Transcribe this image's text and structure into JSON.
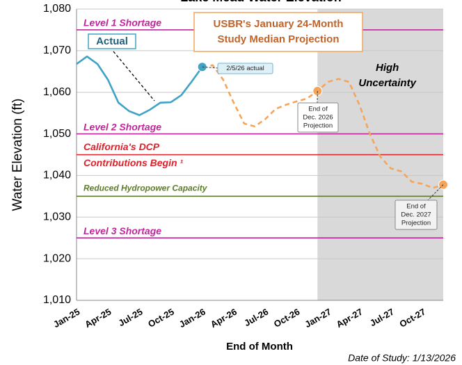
{
  "chart_data": {
    "type": "line",
    "title": "Lake Mead Water Elevation",
    "x_label": "End of Month",
    "y_label": "Water Elevation (ft)",
    "footnote": "Date of Study: 1/13/2026",
    "categories": [
      "Jan-25",
      null,
      null,
      "Apr-25",
      null,
      null,
      "Jul-25",
      null,
      null,
      "Oct-25",
      null,
      null,
      "Jan-26",
      null,
      null,
      "Apr-26",
      null,
      null,
      "Jul-26",
      null,
      null,
      "Oct-26",
      null,
      null,
      "Jan-27",
      null,
      null,
      "Apr-27",
      null,
      null,
      "Jul-27",
      null,
      null,
      "Oct-27",
      null,
      null
    ],
    "series": [
      {
        "name": "Actual",
        "color": "#3ea3c4",
        "dashed": false,
        "values": [
          1066.8,
          1068.6,
          1066.8,
          1063,
          1057.5,
          1055.5,
          1054.5,
          1055.8,
          1057.5,
          1057.6,
          1059.3,
          1062.6,
          1066.1,
          null,
          null,
          null,
          null,
          null,
          null,
          null,
          null,
          null,
          null,
          null,
          null,
          null,
          null,
          null,
          null,
          null,
          null,
          null,
          null,
          null,
          null,
          null
        ]
      },
      {
        "color": "#f6a45a",
        "dashed": true,
        "values": [
          null,
          null,
          null,
          null,
          null,
          null,
          null,
          null,
          null,
          null,
          null,
          null,
          1066.1,
          1066.5,
          1063,
          1057.5,
          1052.5,
          1051.8,
          1053.5,
          1056,
          1057,
          1057.8,
          1058.5,
          1060.3,
          1062.5,
          1063.2,
          1062.5,
          1057,
          1050,
          1044.5,
          1041.7,
          1041,
          1038.5,
          1038,
          1037,
          1037.8
        ]
      }
    ],
    "ylim": [
      1010,
      1080
    ],
    "yticks": [
      {
        "value": 1010,
        "label": "1,010"
      },
      {
        "value": 1020,
        "label": "1,020"
      },
      {
        "value": 1030,
        "label": "1,030"
      },
      {
        "value": 1040,
        "label": "1,040"
      },
      {
        "value": 1050,
        "label": "1,050"
      },
      {
        "value": 1060,
        "label": "1,060"
      },
      {
        "value": 1070,
        "label": "1,070"
      },
      {
        "value": 1080,
        "label": "1,080"
      }
    ],
    "grid": true,
    "reference_lines": [
      {
        "value": 1075,
        "color": "#c0269a",
        "label_lines": [
          "Level 1 Shortage"
        ]
      },
      {
        "value": 1050,
        "color": "#c0269a",
        "label_lines": [
          "Level 2 Shortage"
        ]
      },
      {
        "value": 1045,
        "color": "#e0202a",
        "label_lines": [
          "California's DCP",
          "Contributions Begin ¹"
        ]
      },
      {
        "value": 1035,
        "color": "#5f7a2a",
        "label_lines": [
          "Reduced Hydropower Capacity"
        ]
      },
      {
        "value": 1025,
        "color": "#c0269a",
        "label_lines": [
          "Level 3 Shortage"
        ]
      }
    ],
    "shaded_region": {
      "label_lines": [
        "High",
        "Uncertainty"
      ],
      "color": "#d9d9d9"
    },
    "projection_label": [
      "USBR's January 24-Month",
      "Study Median Projection"
    ],
    "callouts": [
      {
        "lines": [
          "2/5/26 actual"
        ]
      },
      {
        "lines": [
          "End of",
          "Dec. 2026",
          "Projection"
        ]
      },
      {
        "lines": [
          "End of",
          "Dec. 2027",
          "Projection"
        ]
      }
    ]
  }
}
